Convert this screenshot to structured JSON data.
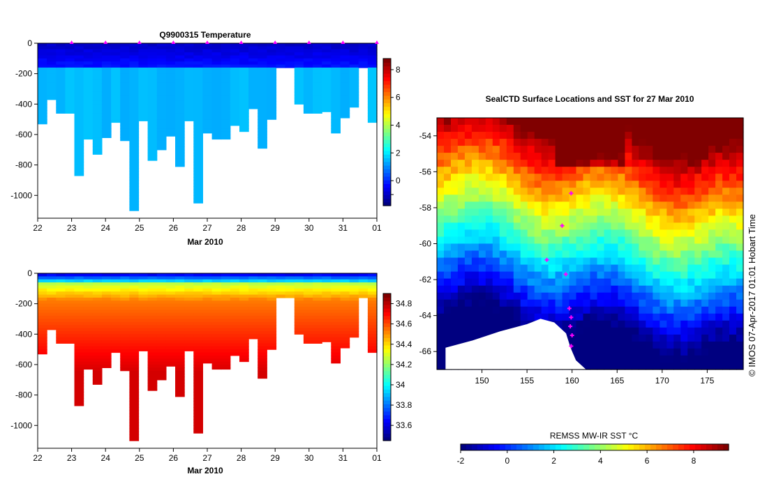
{
  "chart_data": [
    {
      "id": "temperature",
      "type": "heatmap",
      "title": "Q9900315  Temperature",
      "xlabel": "Mar 2010",
      "ylabel": "",
      "x_ticks": [
        "22",
        "23",
        "24",
        "25",
        "26",
        "27",
        "28",
        "29",
        "30",
        "31",
        "01"
      ],
      "x_range": [
        22,
        32
      ],
      "y_range": [
        -1150,
        0
      ],
      "y_ticks": [
        0,
        -200,
        -400,
        -600,
        -800,
        -1000
      ],
      "y_tick_labels": [
        "0",
        "-200",
        "-400",
        "-600",
        "-800",
        "-1000"
      ],
      "colorbar_ticks": [
        -1,
        0,
        2,
        4,
        6,
        8
      ],
      "colorbar_labels": [
        "",
        "0",
        "2",
        "4",
        "6",
        "8"
      ],
      "colorbar_range": [
        -1.8,
        8.8
      ],
      "profile_markers_x": [
        23,
        24,
        25,
        26,
        27,
        28,
        29,
        30,
        31,
        32
      ],
      "profile_max_depths": [
        530,
        370,
        460,
        460,
        870,
        630,
        730,
        620,
        520,
        640,
        1100,
        510,
        770,
        700,
        610,
        810,
        510,
        1050,
        590,
        630,
        630,
        540,
        580,
        430,
        690,
        500,
        160,
        160,
        400,
        460,
        460,
        450,
        590,
        490,
        420,
        160,
        520
      ],
      "surface_value": -1.2,
      "thermocline_depth": 150,
      "deep_value": 1.4
    },
    {
      "id": "salinity",
      "type": "heatmap",
      "title": "",
      "xlabel": "Mar 2010",
      "ylabel": "",
      "x_ticks": [
        "22",
        "23",
        "24",
        "25",
        "26",
        "27",
        "28",
        "29",
        "30",
        "31",
        "01"
      ],
      "x_range": [
        22,
        32
      ],
      "y_range": [
        -1150,
        0
      ],
      "y_ticks": [
        0,
        -200,
        -400,
        -600,
        -800,
        -1000
      ],
      "y_tick_labels": [
        "0",
        "-200",
        "-400",
        "-600",
        "-800",
        "-1000"
      ],
      "colorbar_ticks": [
        33.6,
        33.8,
        34,
        34.2,
        34.4,
        34.6,
        34.8
      ],
      "colorbar_labels": [
        "33.6",
        "33.8",
        "34",
        "34.2",
        "34.4",
        "34.6",
        "34.8"
      ],
      "colorbar_range": [
        33.45,
        34.9
      ],
      "profile_max_depths": [
        530,
        370,
        460,
        460,
        870,
        630,
        730,
        620,
        520,
        640,
        1100,
        510,
        770,
        700,
        610,
        810,
        510,
        1050,
        590,
        630,
        630,
        540,
        580,
        430,
        690,
        500,
        160,
        160,
        400,
        460,
        460,
        450,
        590,
        490,
        420,
        160,
        520
      ],
      "surface_value": 33.7,
      "deep_value": 34.72
    },
    {
      "id": "sst_map",
      "type": "heatmap",
      "title": "SealCTD Surface Locations and SST for 27 Mar 2010",
      "x_ticks": [
        "150",
        "155",
        "160",
        "165",
        "170",
        "175"
      ],
      "x_tick_values": [
        150,
        155,
        160,
        165,
        170,
        175
      ],
      "x_range": [
        145,
        179
      ],
      "y_ticks": [
        "-54",
        "-56",
        "-58",
        "-60",
        "-62",
        "-64",
        "-66"
      ],
      "y_tick_values": [
        -54,
        -56,
        -58,
        -60,
        -62,
        -64,
        -66
      ],
      "y_range": [
        -67,
        -53
      ],
      "colorbar_title": "REMSS MW-IR SST °C",
      "colorbar_ticks": [
        -2,
        0,
        2,
        4,
        6,
        8
      ],
      "colorbar_labels": [
        "-2",
        "0",
        "2",
        "4",
        "6",
        "8"
      ],
      "colorbar_range": [
        -2,
        9.5
      ],
      "seal_track": [
        {
          "lon": 157.2,
          "lat": -60.9
        },
        {
          "lon": 159.3,
          "lat": -61.7
        },
        {
          "lon": 159.7,
          "lat": -63.6
        },
        {
          "lon": 159.9,
          "lat": -64.1
        },
        {
          "lon": 159.8,
          "lat": -64.6
        },
        {
          "lon": 160.0,
          "lat": -65.1
        },
        {
          "lon": 159.9,
          "lat": -65.7
        },
        {
          "lon": 158.9,
          "lat": -59.0
        },
        {
          "lon": 159.9,
          "lat": -57.2
        }
      ]
    }
  ],
  "credit": "© IMOS 07-Apr-2017 01:01 Hobart Time",
  "colors": {
    "background": "#ffffff",
    "axis": "#000000",
    "marker": "#ff00ff",
    "land": "#ffffff"
  }
}
